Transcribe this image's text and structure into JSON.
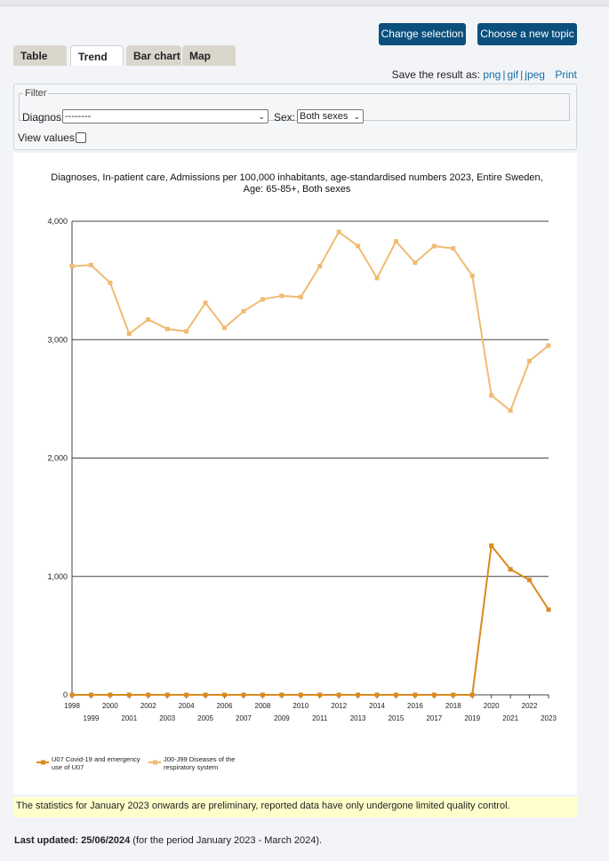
{
  "header": {
    "change_selection": "Change selection",
    "choose_topic": "Choose a new topic"
  },
  "tabs": [
    {
      "label": "Table"
    },
    {
      "label": "Trend"
    },
    {
      "label": "Bar chart"
    },
    {
      "label": "Map"
    }
  ],
  "active_tab": "Trend",
  "save": {
    "label": "Save the result as:",
    "png": "png",
    "gif": "gif",
    "jpeg": "jpeg",
    "print": "Print"
  },
  "filter": {
    "legend": "Filter",
    "diagnos_label": "Diagnos:",
    "diagnos_value": "--------",
    "sex_label": "Sex:",
    "sex_value": "Both sexes",
    "view_values_label": "View values:"
  },
  "chart_data": {
    "type": "line",
    "title": "Diagnoses, In-patient care, Admissions per 100,000 inhabitants, age-standardised numbers 2023, Entire Sweden, Age: 65-85+, Both sexes",
    "x": [
      "1998",
      "1999",
      "2000",
      "2001",
      "2002",
      "2003",
      "2004",
      "2005",
      "2006",
      "2007",
      "2008",
      "2009",
      "2010",
      "2011",
      "2012",
      "2013",
      "2014",
      "2015",
      "2016",
      "2017",
      "2018",
      "2019",
      "2020",
      "2021",
      "2022",
      "2023"
    ],
    "ylim": [
      0,
      4000
    ],
    "yticks": [
      0,
      1000,
      2000,
      3000,
      4000
    ],
    "ytick_labels": [
      "0",
      "1,000",
      "2,000",
      "3,000",
      "4,000"
    ],
    "grid": true,
    "legend_position": "bottom-left",
    "series": [
      {
        "name": "U07 Covid-19 and emergency use of U07",
        "color": "#d98a1f",
        "values": [
          0,
          0,
          0,
          0,
          0,
          0,
          0,
          0,
          0,
          0,
          0,
          0,
          0,
          0,
          0,
          0,
          0,
          0,
          0,
          0,
          0,
          0,
          1260,
          1060,
          970,
          720
        ]
      },
      {
        "name": "J00-J99 Diseases of the respiratory system",
        "color": "#efbb72",
        "values": [
          3620,
          3630,
          3480,
          3050,
          3170,
          3090,
          3070,
          3310,
          3100,
          3240,
          3340,
          3370,
          3360,
          3620,
          3910,
          3790,
          3520,
          3830,
          3650,
          3790,
          3770,
          3540,
          2530,
          2400,
          2820,
          2950
        ]
      }
    ]
  },
  "notice": "The statistics for January 2023 onwards are preliminary, reported data have only undergone limited quality control.",
  "updated": {
    "label": "Last updated: 25/06/2024",
    "period": "(for the period January 2023 - March 2024)."
  }
}
